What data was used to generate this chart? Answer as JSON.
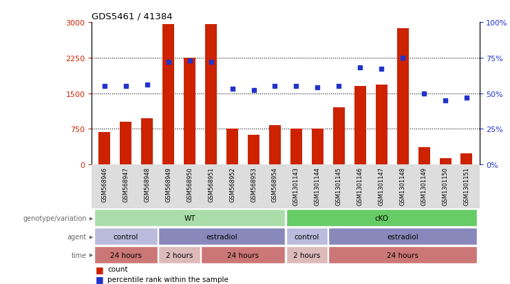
{
  "title": "GDS5461 / 41384",
  "samples": [
    "GSM568946",
    "GSM568947",
    "GSM568948",
    "GSM568949",
    "GSM568950",
    "GSM568951",
    "GSM568952",
    "GSM568953",
    "GSM568954",
    "GSM1301143",
    "GSM1301144",
    "GSM1301145",
    "GSM1301146",
    "GSM1301147",
    "GSM1301148",
    "GSM1301149",
    "GSM1301150",
    "GSM1301151"
  ],
  "counts": [
    690,
    900,
    980,
    2960,
    2250,
    2960,
    760,
    620,
    830,
    760,
    760,
    1200,
    1650,
    1680,
    2870,
    360,
    130,
    240
  ],
  "percentile_ranks": [
    55,
    55,
    56,
    72,
    73,
    72,
    53,
    52,
    55,
    55,
    54,
    55,
    68,
    67,
    75,
    50,
    45,
    47
  ],
  "bar_color": "#cc2200",
  "dot_color": "#2233cc",
  "ylim_left": [
    0,
    3000
  ],
  "ylim_right": [
    0,
    100
  ],
  "yticks_left": [
    0,
    750,
    1500,
    2250,
    3000
  ],
  "yticks_right": [
    0,
    25,
    50,
    75,
    100
  ],
  "genotype_segments": [
    {
      "label": "WT",
      "start": 0,
      "end": 8,
      "color": "#aaddaa"
    },
    {
      "label": "cKO",
      "start": 9,
      "end": 17,
      "color": "#66cc66"
    }
  ],
  "agent_segments": [
    {
      "label": "control",
      "start": 0,
      "end": 2,
      "color": "#bbbbdd"
    },
    {
      "label": "estradiol",
      "start": 3,
      "end": 8,
      "color": "#8888bb"
    },
    {
      "label": "control",
      "start": 9,
      "end": 10,
      "color": "#bbbbdd"
    },
    {
      "label": "estradiol",
      "start": 11,
      "end": 17,
      "color": "#8888bb"
    }
  ],
  "time_segments": [
    {
      "label": "24 hours",
      "start": 0,
      "end": 2,
      "color": "#cc7777"
    },
    {
      "label": "2 hours",
      "start": 3,
      "end": 4,
      "color": "#ddbbbb"
    },
    {
      "label": "24 hours",
      "start": 5,
      "end": 8,
      "color": "#cc7777"
    },
    {
      "label": "2 hours",
      "start": 9,
      "end": 10,
      "color": "#ddbbbb"
    },
    {
      "label": "24 hours",
      "start": 11,
      "end": 17,
      "color": "#cc7777"
    }
  ],
  "row_labels": [
    "genotype/variation",
    "agent",
    "time"
  ],
  "tick_color_left": "#cc2200",
  "tick_color_right": "#2233cc",
  "bg_color": "#ffffff",
  "sample_bg_color": "#dddddd"
}
